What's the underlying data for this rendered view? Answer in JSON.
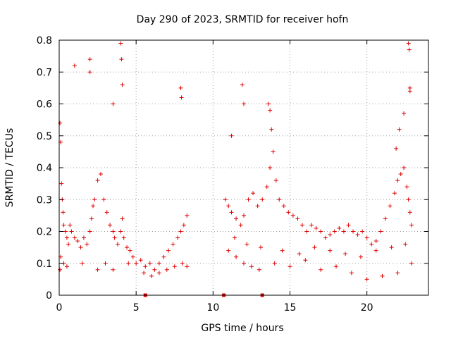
{
  "chart_data": {
    "type": "scatter",
    "title": "Day 290 of 2023, SRMTID for receiver hofn",
    "xlabel": "GPS time / hours",
    "ylabel": "SRMTID / TECUs",
    "xlim": [
      0,
      24
    ],
    "ylim": [
      0,
      0.8
    ],
    "x_ticks": [
      0,
      5,
      10,
      15,
      20
    ],
    "x_tick_labels": [
      "0",
      "5",
      "10",
      "15",
      "20"
    ],
    "y_ticks": [
      0,
      0.1,
      0.2,
      0.3,
      0.4,
      0.5,
      0.6,
      0.7,
      0.8
    ],
    "y_tick_labels": [
      "0",
      "0.1",
      "0.2",
      "0.3",
      "0.4",
      "0.5",
      "0.6",
      "0.7",
      "0.8"
    ],
    "grid": true,
    "marker": "plus",
    "color": "#e00000",
    "baseline_markers_x": [
      5.6,
      10.7,
      13.2
    ],
    "series": [
      {
        "name": "SRMTID",
        "x": [
          0.05,
          0.1,
          0.15,
          0.2,
          0.25,
          0.3,
          0.4,
          0.5,
          0.6,
          0.7,
          0.8,
          1.0,
          1.2,
          1.4,
          1.6,
          1.8,
          2.0,
          2.1,
          2.2,
          2.3,
          2.5,
          2.7,
          2.9,
          3.1,
          3.3,
          3.5,
          3.6,
          3.8,
          4.0,
          4.1,
          4.2,
          4.4,
          4.6,
          4.8,
          5.0,
          5.3,
          5.6,
          5.9,
          6.2,
          6.5,
          6.8,
          7.1,
          7.4,
          7.7,
          7.9,
          8.1,
          8.3,
          1.0,
          2.0,
          2.0,
          3.5,
          4.0,
          4.05,
          4.1,
          7.9,
          7.95,
          0.05,
          0.1,
          0.3,
          0.5,
          1.5,
          2.5,
          3.0,
          3.5,
          4.5,
          5.5,
          6.0,
          6.5,
          7.0,
          7.5,
          8.0,
          8.3,
          10.8,
          11.0,
          11.2,
          11.5,
          11.8,
          12.0,
          12.3,
          12.6,
          12.9,
          13.2,
          13.5,
          13.7,
          13.9,
          14.1,
          14.3,
          14.6,
          14.9,
          15.2,
          15.5,
          15.8,
          16.1,
          16.4,
          16.7,
          17.0,
          17.3,
          17.6,
          17.9,
          18.2,
          18.5,
          18.8,
          19.1,
          19.4,
          19.7,
          20.0,
          20.3,
          20.6,
          20.9,
          21.2,
          21.5,
          21.8,
          22.0,
          22.2,
          22.4,
          22.6,
          22.7,
          22.8,
          22.9,
          11.9,
          12.0,
          11.2,
          13.6,
          13.7,
          13.8,
          22.7,
          22.75,
          22.8,
          22.8,
          22.4,
          22.1,
          21.9,
          11.0,
          11.5,
          12.0,
          12.5,
          13.0,
          14.0,
          15.0,
          16.0,
          17.0,
          18.0,
          19.0,
          20.0,
          21.0,
          22.0,
          22.9,
          11.4,
          12.2,
          13.1,
          14.5,
          15.6,
          16.6,
          17.6,
          18.6,
          19.6,
          20.6,
          21.6,
          22.5
        ],
        "y": [
          0.54,
          0.48,
          0.35,
          0.3,
          0.26,
          0.22,
          0.2,
          0.18,
          0.16,
          0.22,
          0.2,
          0.18,
          0.17,
          0.15,
          0.18,
          0.16,
          0.2,
          0.24,
          0.28,
          0.3,
          0.36,
          0.38,
          0.3,
          0.26,
          0.22,
          0.2,
          0.18,
          0.16,
          0.2,
          0.24,
          0.18,
          0.15,
          0.14,
          0.12,
          0.1,
          0.11,
          0.09,
          0.1,
          0.08,
          0.1,
          0.12,
          0.14,
          0.16,
          0.18,
          0.2,
          0.22,
          0.25,
          0.72,
          0.74,
          0.7,
          0.6,
          0.79,
          0.74,
          0.66,
          0.65,
          0.62,
          0.08,
          0.12,
          0.1,
          0.09,
          0.1,
          0.08,
          0.1,
          0.08,
          0.1,
          0.07,
          0.06,
          0.07,
          0.08,
          0.09,
          0.1,
          0.09,
          0.3,
          0.28,
          0.26,
          0.24,
          0.22,
          0.25,
          0.3,
          0.32,
          0.28,
          0.3,
          0.34,
          0.4,
          0.45,
          0.36,
          0.3,
          0.28,
          0.26,
          0.25,
          0.24,
          0.22,
          0.2,
          0.22,
          0.21,
          0.2,
          0.18,
          0.19,
          0.2,
          0.21,
          0.2,
          0.22,
          0.2,
          0.19,
          0.2,
          0.18,
          0.16,
          0.17,
          0.2,
          0.24,
          0.28,
          0.32,
          0.36,
          0.38,
          0.4,
          0.34,
          0.3,
          0.26,
          0.22,
          0.66,
          0.6,
          0.5,
          0.6,
          0.58,
          0.52,
          0.79,
          0.77,
          0.65,
          0.64,
          0.57,
          0.52,
          0.46,
          0.14,
          0.12,
          0.1,
          0.09,
          0.08,
          0.1,
          0.09,
          0.11,
          0.08,
          0.09,
          0.07,
          0.05,
          0.06,
          0.07,
          0.1,
          0.18,
          0.16,
          0.15,
          0.14,
          0.13,
          0.15,
          0.14,
          0.13,
          0.12,
          0.14,
          0.15,
          0.16
        ]
      }
    ]
  }
}
